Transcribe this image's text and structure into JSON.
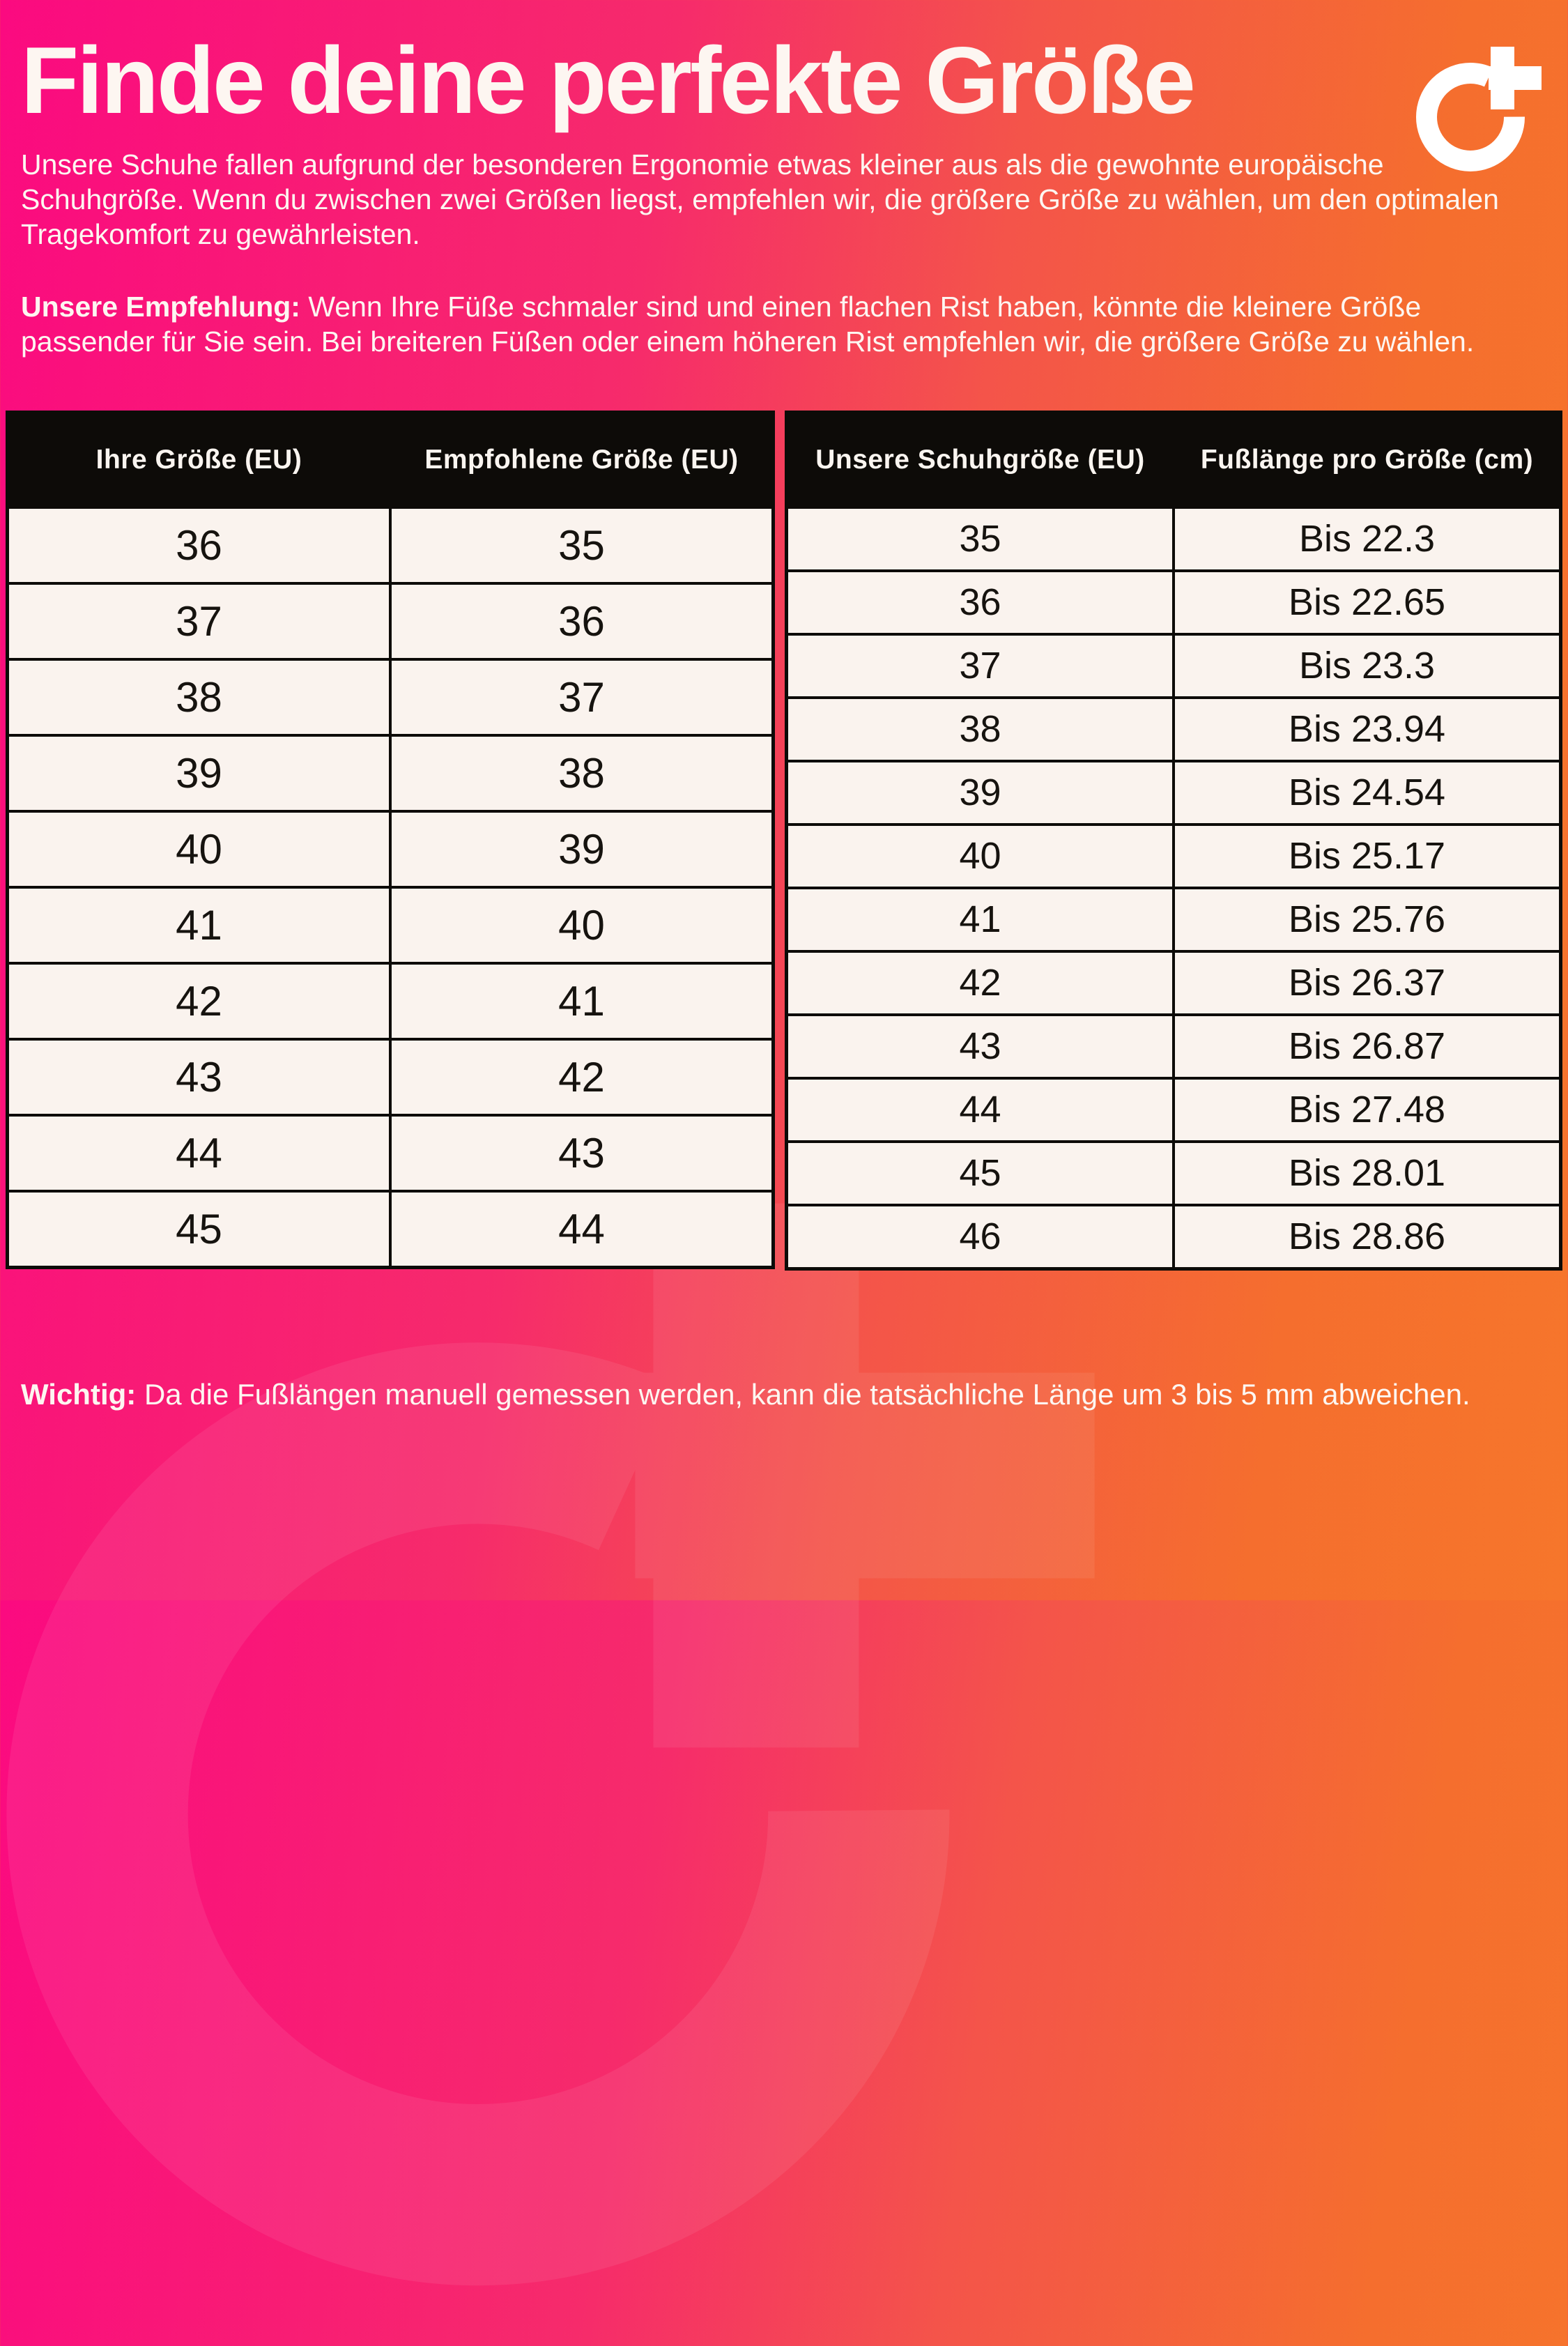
{
  "header": {
    "title": "Finde deine perfekte Größe",
    "logo_icon": "o-plus-logo"
  },
  "intro": "Unsere Schuhe fallen aufgrund der besonderen Ergonomie etwas kleiner aus als die gewohnte europäische Schuhgröße. Wenn du zwischen zwei Größen liegst, empfehlen wir, die größere Größe zu wählen, um den optimalen Tragekomfort zu gewährleisten.",
  "recommendation": {
    "label": "Unsere Empfehlung:",
    "text": "Wenn Ihre Füße schmaler sind und einen flachen Rist haben, könnte die kleinere Größe passender für Sie sein. Bei breiteren Füßen oder einem höheren Rist empfehlen wir, die größere Größe zu wählen."
  },
  "size_table": {
    "headers": [
      "Ihre Größe (EU)",
      "Empfohlene Größe (EU)"
    ],
    "rows": [
      [
        "36",
        "35"
      ],
      [
        "37",
        "36"
      ],
      [
        "38",
        "37"
      ],
      [
        "39",
        "38"
      ],
      [
        "40",
        "39"
      ],
      [
        "41",
        "40"
      ],
      [
        "42",
        "41"
      ],
      [
        "43",
        "42"
      ],
      [
        "44",
        "43"
      ],
      [
        "45",
        "44"
      ]
    ]
  },
  "length_table": {
    "headers": [
      "Unsere Schuhgröße (EU)",
      "Fußlänge pro Größe (cm)"
    ],
    "rows": [
      [
        "35",
        "Bis 22.3"
      ],
      [
        "36",
        "Bis 22.65"
      ],
      [
        "37",
        "Bis 23.3"
      ],
      [
        "38",
        "Bis 23.94"
      ],
      [
        "39",
        "Bis 24.54"
      ],
      [
        "40",
        "Bis 25.17"
      ],
      [
        "41",
        "Bis 25.76"
      ],
      [
        "42",
        "Bis 26.37"
      ],
      [
        "43",
        "Bis 26.87"
      ],
      [
        "44",
        "Bis 27.48"
      ],
      [
        "45",
        "Bis 28.01"
      ],
      [
        "46",
        "Bis 28.86"
      ]
    ]
  },
  "footer": {
    "label": "Wichtig:",
    "text": "Da die Fußlängen manuell gemessen werden, kann die tatsächliche Länge um 3 bis 5 mm abweichen."
  },
  "colors": {
    "gradient_start": "#fb0a80",
    "gradient_end": "#f6762b",
    "table_header_bg": "#0d0b08",
    "table_cell_bg": "#faf3ee",
    "text_color": "#fdf6f1"
  }
}
